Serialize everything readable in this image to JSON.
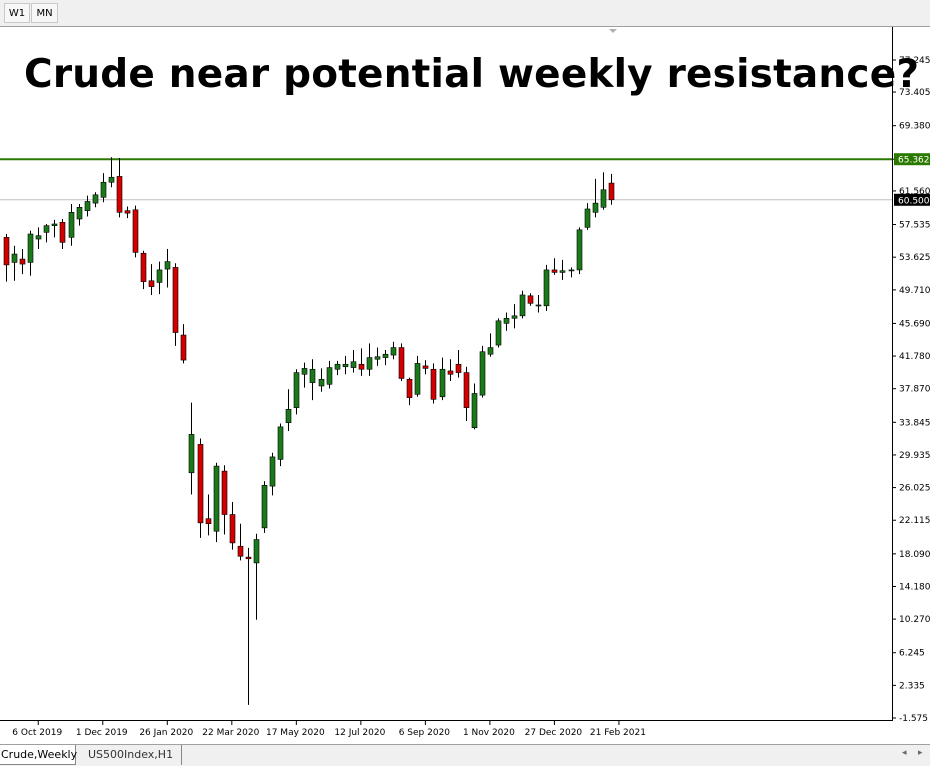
{
  "toolbar": {
    "timeframes": [
      "W1",
      "MN"
    ]
  },
  "title": "Crude near potential weekly resistance?",
  "tabs": [
    "Crude,Weekly",
    "US500Index,H1"
  ],
  "colors": {
    "up": "#1a7a1a",
    "down": "#d40000",
    "resistance": "#2b7a00",
    "price_line": "#c0c0c0",
    "price_badge": "#000000"
  },
  "chart_data": {
    "type": "candlestick",
    "ylim": [
      -1.575,
      77.245
    ],
    "y_ticks": [
      "77.245",
      "73.405",
      "69.380",
      "65.362",
      "61.560",
      "57.535",
      "53.625",
      "49.710",
      "45.690",
      "41.780",
      "37.870",
      "33.845",
      "29.935",
      "26.025",
      "22.115",
      "18.090",
      "14.180",
      "10.270",
      "6.245",
      "2.335",
      "-1.575"
    ],
    "x_tick_labels": [
      "6 Oct 2019",
      "1 Dec 2019",
      "26 Jan 2020",
      "22 Mar 2020",
      "17 May 2020",
      "12 Jul 2020",
      "6 Sep 2020",
      "1 Nov 2020",
      "27 Dec 2020",
      "21 Feb 2021"
    ],
    "resistance": {
      "value": 65.362,
      "label": "65.362"
    },
    "current_price": {
      "value": 60.5,
      "label": "60.500"
    },
    "candles": [
      {
        "o": 56.0,
        "h": 56.4,
        "l": 50.7,
        "c": 52.7
      },
      {
        "o": 53.0,
        "h": 55.0,
        "l": 50.8,
        "c": 54.0
      },
      {
        "o": 53.4,
        "h": 54.6,
        "l": 51.6,
        "c": 52.8
      },
      {
        "o": 53.0,
        "h": 56.8,
        "l": 51.4,
        "c": 56.4
      },
      {
        "o": 55.8,
        "h": 57.2,
        "l": 54.6,
        "c": 56.2
      },
      {
        "o": 56.6,
        "h": 57.6,
        "l": 55.4,
        "c": 57.4
      },
      {
        "o": 57.4,
        "h": 58.1,
        "l": 56.0,
        "c": 57.6
      },
      {
        "o": 57.8,
        "h": 58.2,
        "l": 54.6,
        "c": 55.4
      },
      {
        "o": 56.0,
        "h": 60.0,
        "l": 55.0,
        "c": 59.0
      },
      {
        "o": 58.2,
        "h": 60.0,
        "l": 57.4,
        "c": 59.6
      },
      {
        "o": 59.2,
        "h": 61.0,
        "l": 58.5,
        "c": 60.3
      },
      {
        "o": 60.1,
        "h": 61.4,
        "l": 59.6,
        "c": 61.1
      },
      {
        "o": 60.8,
        "h": 63.7,
        "l": 60.2,
        "c": 62.6
      },
      {
        "o": 62.6,
        "h": 65.6,
        "l": 62.0,
        "c": 63.2
      },
      {
        "o": 63.3,
        "h": 65.5,
        "l": 58.4,
        "c": 59.0
      },
      {
        "o": 59.2,
        "h": 59.7,
        "l": 58.3,
        "c": 58.9
      },
      {
        "o": 59.3,
        "h": 59.8,
        "l": 53.6,
        "c": 54.2
      },
      {
        "o": 54.1,
        "h": 54.4,
        "l": 49.8,
        "c": 50.7
      },
      {
        "o": 50.8,
        "h": 52.8,
        "l": 49.1,
        "c": 50.1
      },
      {
        "o": 50.6,
        "h": 53.1,
        "l": 49.2,
        "c": 52.1
      },
      {
        "o": 52.2,
        "h": 54.6,
        "l": 50.0,
        "c": 53.1
      },
      {
        "o": 52.4,
        "h": 52.9,
        "l": 43.0,
        "c": 44.6
      },
      {
        "o": 44.3,
        "h": 45.6,
        "l": 40.9,
        "c": 41.3
      },
      {
        "o": 27.8,
        "h": 36.2,
        "l": 25.2,
        "c": 32.4
      },
      {
        "o": 31.2,
        "h": 31.9,
        "l": 20.0,
        "c": 21.8
      },
      {
        "o": 22.3,
        "h": 25.2,
        "l": 20.3,
        "c": 21.7
      },
      {
        "o": 20.8,
        "h": 29.0,
        "l": 19.5,
        "c": 28.6
      },
      {
        "o": 28.0,
        "h": 28.7,
        "l": 20.4,
        "c": 22.8
      },
      {
        "o": 22.8,
        "h": 24.3,
        "l": 18.6,
        "c": 19.4
      },
      {
        "o": 19.0,
        "h": 21.7,
        "l": 17.3,
        "c": 17.8
      },
      {
        "o": 17.7,
        "h": 18.8,
        "l": 0.0,
        "c": 17.5
      },
      {
        "o": 17.0,
        "h": 20.5,
        "l": 10.2,
        "c": 19.8
      },
      {
        "o": 21.2,
        "h": 26.8,
        "l": 20.6,
        "c": 26.3
      },
      {
        "o": 26.2,
        "h": 30.2,
        "l": 25.1,
        "c": 29.7
      },
      {
        "o": 29.4,
        "h": 33.7,
        "l": 28.6,
        "c": 33.3
      },
      {
        "o": 33.8,
        "h": 37.8,
        "l": 32.8,
        "c": 35.4
      },
      {
        "o": 35.6,
        "h": 40.2,
        "l": 34.8,
        "c": 39.8
      },
      {
        "o": 39.6,
        "h": 41.0,
        "l": 38.0,
        "c": 40.3
      },
      {
        "o": 38.6,
        "h": 41.4,
        "l": 36.5,
        "c": 40.2
      },
      {
        "o": 38.2,
        "h": 40.3,
        "l": 37.5,
        "c": 39.0
      },
      {
        "o": 38.4,
        "h": 41.2,
        "l": 37.9,
        "c": 40.4
      },
      {
        "o": 40.2,
        "h": 41.2,
        "l": 39.5,
        "c": 40.8
      },
      {
        "o": 40.5,
        "h": 41.8,
        "l": 39.6,
        "c": 40.8
      },
      {
        "o": 40.4,
        "h": 42.5,
        "l": 39.8,
        "c": 41.1
      },
      {
        "o": 40.8,
        "h": 42.7,
        "l": 39.4,
        "c": 40.2
      },
      {
        "o": 40.2,
        "h": 43.3,
        "l": 39.4,
        "c": 41.6
      },
      {
        "o": 41.4,
        "h": 42.8,
        "l": 40.6,
        "c": 41.7
      },
      {
        "o": 41.6,
        "h": 42.5,
        "l": 40.7,
        "c": 42.0
      },
      {
        "o": 41.9,
        "h": 43.5,
        "l": 41.4,
        "c": 42.8
      },
      {
        "o": 42.8,
        "h": 43.3,
        "l": 38.8,
        "c": 39.1
      },
      {
        "o": 39.0,
        "h": 39.2,
        "l": 35.9,
        "c": 36.8
      },
      {
        "o": 37.2,
        "h": 41.8,
        "l": 36.9,
        "c": 40.9
      },
      {
        "o": 40.6,
        "h": 41.3,
        "l": 39.6,
        "c": 40.3
      },
      {
        "o": 40.2,
        "h": 40.9,
        "l": 36.1,
        "c": 36.6
      },
      {
        "o": 36.9,
        "h": 41.6,
        "l": 36.5,
        "c": 40.2
      },
      {
        "o": 40.0,
        "h": 41.4,
        "l": 38.8,
        "c": 39.6
      },
      {
        "o": 40.8,
        "h": 42.5,
        "l": 39.2,
        "c": 39.8
      },
      {
        "o": 39.8,
        "h": 40.5,
        "l": 34.0,
        "c": 35.6
      },
      {
        "o": 33.2,
        "h": 38.5,
        "l": 33.0,
        "c": 37.3
      },
      {
        "o": 37.1,
        "h": 43.0,
        "l": 36.8,
        "c": 42.3
      },
      {
        "o": 42.0,
        "h": 44.5,
        "l": 41.7,
        "c": 42.8
      },
      {
        "o": 43.1,
        "h": 46.3,
        "l": 42.8,
        "c": 46.0
      },
      {
        "o": 45.7,
        "h": 47.0,
        "l": 44.8,
        "c": 46.3
      },
      {
        "o": 46.3,
        "h": 48.0,
        "l": 45.1,
        "c": 46.6
      },
      {
        "o": 46.6,
        "h": 49.6,
        "l": 46.3,
        "c": 49.1
      },
      {
        "o": 49.0,
        "h": 49.3,
        "l": 47.8,
        "c": 48.1
      },
      {
        "o": 47.8,
        "h": 49.1,
        "l": 47.0,
        "c": 47.9
      },
      {
        "o": 47.8,
        "h": 52.7,
        "l": 47.2,
        "c": 52.1
      },
      {
        "o": 52.1,
        "h": 53.5,
        "l": 51.5,
        "c": 51.8
      },
      {
        "o": 51.8,
        "h": 53.3,
        "l": 50.9,
        "c": 52.0
      },
      {
        "o": 52.1,
        "h": 52.4,
        "l": 51.2,
        "c": 52.1
      },
      {
        "o": 52.1,
        "h": 57.2,
        "l": 51.6,
        "c": 56.9
      },
      {
        "o": 57.2,
        "h": 60.1,
        "l": 56.9,
        "c": 59.4
      },
      {
        "o": 59.0,
        "h": 63.0,
        "l": 58.4,
        "c": 60.1
      },
      {
        "o": 59.6,
        "h": 63.8,
        "l": 59.3,
        "c": 61.7
      },
      {
        "o": 62.5,
        "h": 63.6,
        "l": 59.9,
        "c": 60.5
      }
    ]
  }
}
